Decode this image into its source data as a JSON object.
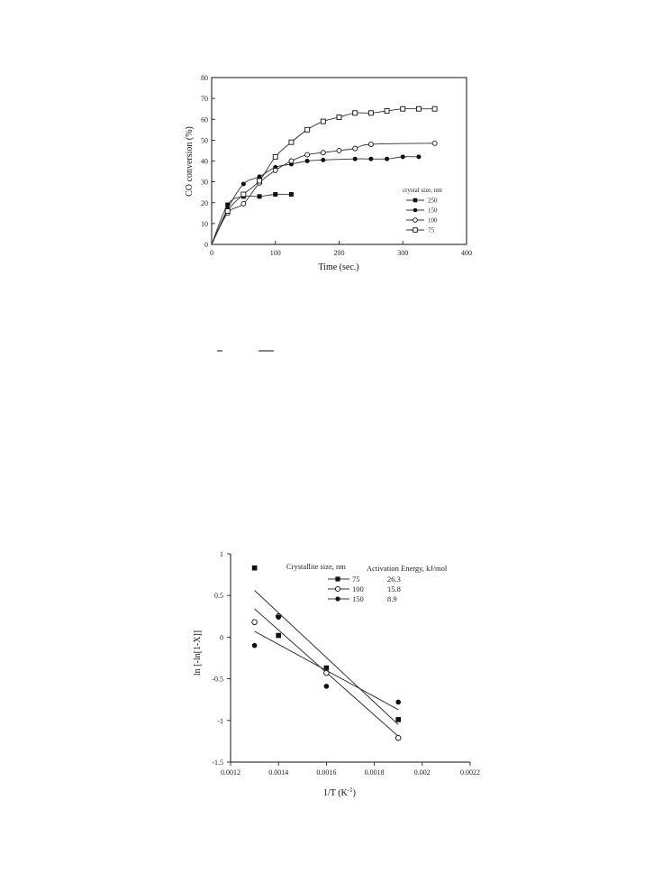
{
  "chart_data": [
    {
      "type": "line",
      "xlabel": "Time (sec.)",
      "ylabel": "CO conversion (%)",
      "xlim": [
        0,
        400
      ],
      "ylim": [
        0,
        80
      ],
      "xticks": [
        "0",
        "100",
        "200",
        "300",
        "400"
      ],
      "yticks": [
        "0",
        "10",
        "20",
        "30",
        "40",
        "50",
        "60",
        "70",
        "80"
      ],
      "legend_title": "crystal size, nm",
      "legend_position": "right",
      "grid": false,
      "series": [
        {
          "name": "250",
          "marker": "filled-square",
          "x": [
            0,
            25,
            50,
            75,
            100,
            125
          ],
          "y": [
            0,
            19,
            23,
            23,
            24,
            24
          ]
        },
        {
          "name": "150",
          "marker": "filled-circle",
          "x": [
            0,
            25,
            50,
            75,
            100,
            125,
            150,
            175,
            225,
            250,
            275,
            300,
            325
          ],
          "y": [
            0,
            17,
            29,
            32.5,
            37,
            38.5,
            40,
            40.5,
            41,
            41,
            41,
            42,
            42
          ]
        },
        {
          "name": "100",
          "marker": "open-circle",
          "x": [
            0,
            25,
            50,
            75,
            100,
            125,
            150,
            175,
            200,
            225,
            250,
            350
          ],
          "y": [
            0,
            15,
            19.5,
            29.5,
            35.5,
            40,
            43,
            44,
            45,
            46,
            48,
            48.5
          ]
        },
        {
          "name": "75",
          "marker": "open-square",
          "x": [
            0,
            25,
            50,
            75,
            100,
            125,
            150,
            175,
            200,
            225,
            250,
            275,
            300,
            325,
            350
          ],
          "y": [
            0,
            16,
            24,
            30.5,
            42,
            49,
            55,
            59,
            61,
            63,
            63,
            64,
            65,
            65,
            65
          ]
        }
      ]
    },
    {
      "type": "scatter",
      "xlabel": "1/T (K",
      "xlabel_sup": "-1",
      "xlabel_end": ")",
      "ylabel": "ln [-ln[1-X]]",
      "xlim": [
        0.0012,
        0.0022
      ],
      "ylim": [
        -1.5,
        1
      ],
      "xticks": [
        "0.0012",
        "0.0014",
        "0.0016",
        "0.0018",
        "0.002",
        "0.0022"
      ],
      "yticks": [
        "1",
        "0.5",
        "0",
        "-0.5",
        "-1",
        "-1.5"
      ],
      "legend_title": "Crystallite size, nm",
      "legend_title_2": "Activation Energy, kJ/mol",
      "legend_position": "top-right",
      "grid": false,
      "series": [
        {
          "name": "75",
          "energy": "26.3",
          "marker": "filled-square",
          "x": [
            0.0013,
            0.0014,
            0.0016,
            0.0019
          ],
          "y": [
            0.83,
            0.02,
            -0.37,
            -0.99
          ],
          "fit": {
            "x": [
              0.0013,
              0.0019
            ],
            "y": [
              0.56,
              -1.05
            ]
          }
        },
        {
          "name": "100",
          "energy": "15.8",
          "marker": "open-circle",
          "x": [
            0.0013,
            0.0014,
            0.0016,
            0.0019
          ],
          "y": [
            0.18,
            0.25,
            -0.43,
            -1.21
          ],
          "fit": {
            "x": [
              0.0013,
              0.0019
            ],
            "y": [
              0.34,
              -1.19
            ]
          }
        },
        {
          "name": "150",
          "energy": "8.9",
          "marker": "filled-circle",
          "x": [
            0.0013,
            0.0014,
            0.0016,
            0.0019
          ],
          "y": [
            -0.1,
            0.24,
            -0.59,
            -0.78
          ],
          "fit": {
            "x": [
              0.0013,
              0.0019
            ],
            "y": [
              0.07,
              -0.87
            ]
          }
        }
      ]
    }
  ]
}
